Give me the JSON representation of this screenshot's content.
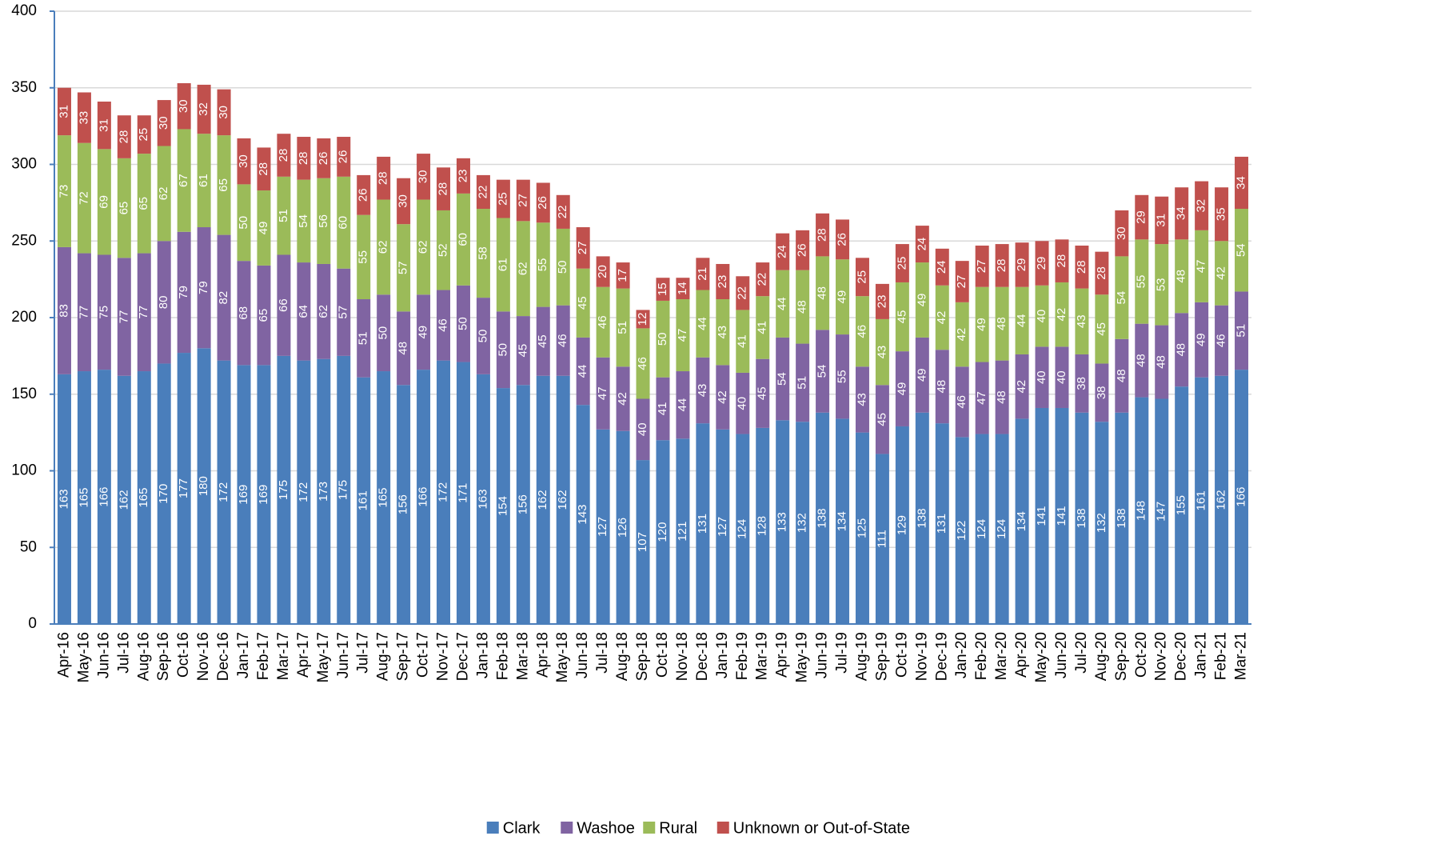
{
  "chart_data": {
    "type": "stacked_bar",
    "categories": [
      "Apr-16",
      "May-16",
      "Jun-16",
      "Jul-16",
      "Aug-16",
      "Sep-16",
      "Oct-16",
      "Nov-16",
      "Dec-16",
      "Jan-17",
      "Feb-17",
      "Mar-17",
      "Apr-17",
      "May-17",
      "Jun-17",
      "Jul-17",
      "Aug-17",
      "Sep-17",
      "Oct-17",
      "Nov-17",
      "Dec-17",
      "Jan-18",
      "Feb-18",
      "Mar-18",
      "Apr-18",
      "May-18",
      "Jun-18",
      "Jul-18",
      "Aug-18",
      "Sep-18",
      "Oct-18",
      "Nov-18",
      "Dec-18",
      "Jan-19",
      "Feb-19",
      "Mar-19",
      "Apr-19",
      "May-19",
      "Jun-19",
      "Jul-19",
      "Aug-19",
      "Sep-19",
      "Oct-19",
      "Nov-19",
      "Dec-19",
      "Jan-20",
      "Feb-20",
      "Mar-20",
      "Apr-20",
      "May-20",
      "Jun-20",
      "Jul-20",
      "Aug-20",
      "Sep-20",
      "Oct-20",
      "Nov-20",
      "Dec-20",
      "Jan-21",
      "Feb-21",
      "Mar-21"
    ],
    "series": [
      {
        "name": "Clark",
        "color": "#4a7ebb",
        "values": [
          163,
          165,
          166,
          162,
          165,
          170,
          177,
          180,
          172,
          169,
          169,
          175,
          172,
          173,
          175,
          161,
          165,
          156,
          166,
          172,
          171,
          163,
          154,
          156,
          162,
          162,
          143,
          127,
          126,
          107,
          120,
          121,
          131,
          127,
          124,
          128,
          133,
          132,
          138,
          134,
          125,
          111,
          129,
          138,
          131,
          122,
          124,
          124,
          134,
          141,
          141,
          138,
          132,
          138,
          148,
          147,
          155,
          161,
          162,
          166
        ]
      },
      {
        "name": "Washoe",
        "color": "#8064a2",
        "values": [
          83,
          77,
          75,
          77,
          77,
          80,
          79,
          79,
          82,
          68,
          65,
          66,
          64,
          62,
          57,
          51,
          50,
          48,
          49,
          46,
          50,
          50,
          50,
          45,
          45,
          46,
          44,
          47,
          42,
          40,
          41,
          44,
          43,
          42,
          40,
          45,
          54,
          51,
          54,
          55,
          43,
          45,
          49,
          49,
          48,
          46,
          47,
          48,
          42,
          40,
          40,
          38,
          38,
          48,
          48,
          48,
          48,
          49,
          46,
          51
        ]
      },
      {
        "name": "Rural",
        "color": "#9bbb59",
        "values": [
          73,
          72,
          69,
          65,
          65,
          62,
          67,
          61,
          65,
          50,
          49,
          51,
          54,
          56,
          60,
          55,
          62,
          57,
          62,
          52,
          60,
          58,
          61,
          62,
          55,
          50,
          45,
          46,
          51,
          46,
          50,
          47,
          44,
          43,
          41,
          41,
          44,
          48,
          48,
          49,
          46,
          43,
          45,
          49,
          42,
          42,
          49,
          48,
          44,
          40,
          42,
          43,
          45,
          54,
          55,
          53,
          48,
          47,
          42,
          54
        ]
      },
      {
        "name": "Unknown or Out-of-State",
        "color": "#c0504d",
        "values": [
          31,
          33,
          31,
          28,
          25,
          30,
          30,
          32,
          30,
          30,
          28,
          28,
          28,
          26,
          26,
          26,
          28,
          30,
          30,
          28,
          23,
          22,
          25,
          27,
          26,
          22,
          27,
          20,
          17,
          12,
          15,
          14,
          21,
          23,
          22,
          22,
          24,
          26,
          28,
          26,
          25,
          23,
          25,
          24,
          24,
          27,
          27,
          28,
          29,
          29,
          28,
          28,
          28,
          30,
          29,
          31,
          34,
          32,
          35,
          34
        ]
      }
    ],
    "ylim": [
      0,
      400
    ],
    "yticks": [
      0,
      50,
      100,
      150,
      200,
      250,
      300,
      350,
      400
    ],
    "grid": true
  }
}
